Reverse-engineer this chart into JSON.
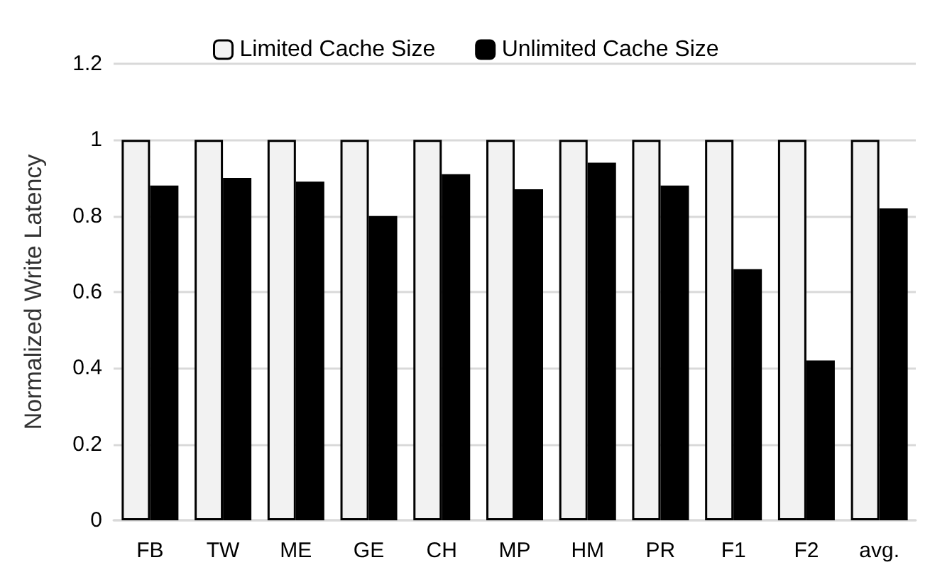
{
  "chart_data": {
    "type": "bar",
    "ylabel": "Normalized Write Latency",
    "categories": [
      "FB",
      "TW",
      "ME",
      "GE",
      "CH",
      "MP",
      "HM",
      "PR",
      "F1",
      "F2",
      "avg."
    ],
    "series": [
      {
        "name": "Limited Cache Size",
        "color": "#f2f2f2",
        "values": [
          1,
          1,
          1,
          1,
          1,
          1,
          1,
          1,
          1,
          1,
          1
        ]
      },
      {
        "name": "Unlimited Cache Size",
        "color": "#000000",
        "values": [
          0.88,
          0.9,
          0.89,
          0.8,
          0.91,
          0.87,
          0.94,
          0.88,
          0.66,
          0.42,
          0.82
        ]
      }
    ],
    "ylim": [
      0,
      1.2
    ],
    "yticks": [
      0,
      0.2,
      0.4,
      0.6,
      0.8,
      1,
      1.2
    ],
    "grid": "y",
    "legend": "top"
  }
}
